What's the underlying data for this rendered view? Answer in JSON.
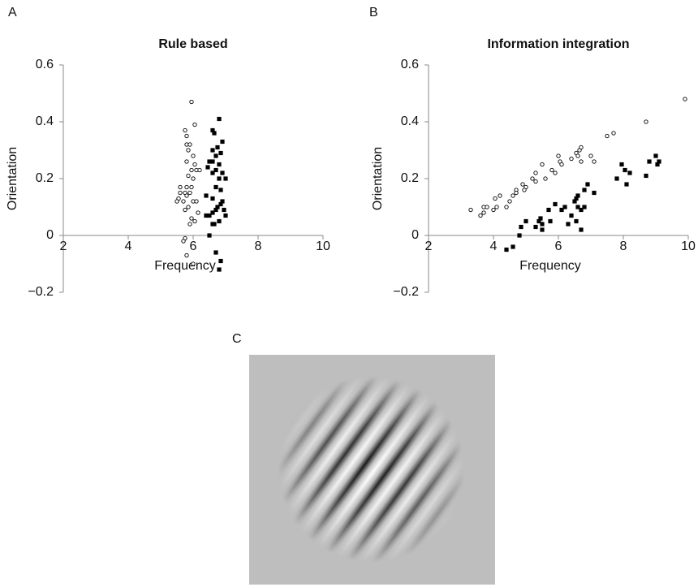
{
  "chart_data": [
    {
      "type": "scatter",
      "panel": "A",
      "title": "Rule based",
      "x_label": "Frequency",
      "y_label": "Orientation",
      "xlim": [
        2,
        10
      ],
      "ylim": [
        -0.2,
        0.6
      ],
      "xticks": [
        2,
        4,
        6,
        8,
        10
      ],
      "yticks": [
        {
          "value": -0.2,
          "label": "−0.2"
        },
        0,
        0.2,
        0.4,
        0.6
      ],
      "series": [
        {
          "marker": "open-circle",
          "color": "#000000",
          "x": [
            5.95,
            6.05,
            5.75,
            5.8,
            5.8,
            5.9,
            5.85,
            6.0,
            5.8,
            6.05,
            5.95,
            6.1,
            6.2,
            5.85,
            6.0,
            5.6,
            5.8,
            5.95,
            5.6,
            5.75,
            5.9,
            5.55,
            5.8,
            5.7,
            6.0,
            6.1,
            5.5,
            5.85,
            5.75,
            6.15,
            5.95,
            6.05,
            5.9,
            5.75,
            5.7,
            5.8,
            6.0
          ],
          "values": [
            0.47,
            0.39,
            0.37,
            0.35,
            0.32,
            0.32,
            0.3,
            0.28,
            0.26,
            0.25,
            0.23,
            0.23,
            0.23,
            0.21,
            0.2,
            0.17,
            0.17,
            0.17,
            0.15,
            0.15,
            0.15,
            0.13,
            0.14,
            0.12,
            0.12,
            0.12,
            0.12,
            0.1,
            0.09,
            0.08,
            0.06,
            0.05,
            0.04,
            -0.01,
            -0.02,
            -0.07,
            -0.1
          ]
        },
        {
          "marker": "square",
          "color": "#000000",
          "x": [
            6.8,
            6.6,
            6.65,
            6.9,
            6.75,
            6.6,
            6.85,
            6.7,
            6.5,
            6.6,
            6.8,
            6.45,
            6.7,
            6.9,
            6.6,
            6.8,
            7.0,
            6.7,
            6.85,
            6.6,
            6.4,
            6.9,
            6.75,
            6.85,
            6.7,
            6.95,
            6.6,
            7.0,
            6.4,
            6.5,
            6.8,
            6.65,
            6.6,
            6.5,
            6.7,
            6.85,
            6.8
          ],
          "values": [
            0.41,
            0.37,
            0.36,
            0.33,
            0.31,
            0.3,
            0.29,
            0.28,
            0.26,
            0.26,
            0.25,
            0.24,
            0.23,
            0.22,
            0.22,
            0.2,
            0.2,
            0.17,
            0.16,
            0.13,
            0.14,
            0.12,
            0.1,
            0.11,
            0.09,
            0.09,
            0.08,
            0.07,
            0.07,
            0.07,
            0.05,
            0.04,
            0.04,
            0.0,
            -0.06,
            -0.09,
            -0.12
          ]
        }
      ]
    },
    {
      "type": "scatter",
      "panel": "B",
      "title": "Information integration",
      "x_label": "Frequency",
      "y_label": "Orientation",
      "xlim": [
        2,
        10
      ],
      "ylim": [
        -0.2,
        0.6
      ],
      "xticks": [
        2,
        4,
        6,
        8,
        10
      ],
      "yticks": [
        {
          "value": -0.2,
          "label": "−0.2"
        },
        0,
        0.2,
        0.4,
        0.6
      ],
      "series": [
        {
          "marker": "open-circle",
          "color": "#000000",
          "x": [
            3.3,
            3.6,
            3.7,
            3.7,
            3.8,
            4.0,
            4.1,
            4.05,
            4.2,
            4.4,
            4.5,
            4.6,
            4.7,
            4.7,
            4.9,
            5.0,
            4.95,
            5.2,
            5.3,
            5.3,
            5.5,
            5.6,
            5.8,
            5.9,
            6.0,
            6.05,
            6.1,
            6.4,
            6.55,
            6.6,
            6.65,
            6.7,
            6.7,
            7.0,
            7.1,
            7.5,
            7.7,
            8.7,
            9.9
          ],
          "values": [
            0.09,
            0.07,
            0.08,
            0.1,
            0.1,
            0.09,
            0.1,
            0.13,
            0.14,
            0.1,
            0.12,
            0.14,
            0.16,
            0.15,
            0.18,
            0.17,
            0.16,
            0.2,
            0.22,
            0.19,
            0.25,
            0.2,
            0.23,
            0.22,
            0.28,
            0.26,
            0.25,
            0.27,
            0.29,
            0.28,
            0.3,
            0.31,
            0.26,
            0.28,
            0.26,
            0.35,
            0.36,
            0.4,
            0.48
          ]
        },
        {
          "marker": "square",
          "color": "#000000",
          "x": [
            4.4,
            4.6,
            4.8,
            4.85,
            5.0,
            5.3,
            5.4,
            5.45,
            5.5,
            5.5,
            5.7,
            5.75,
            5.9,
            6.1,
            6.2,
            6.3,
            6.4,
            6.5,
            6.55,
            6.55,
            6.6,
            6.6,
            6.7,
            6.7,
            6.8,
            6.8,
            6.9,
            7.1,
            7.8,
            7.95,
            8.05,
            8.1,
            8.2,
            8.7,
            8.8,
            9.0,
            9.05,
            9.1
          ],
          "values": [
            -0.05,
            -0.04,
            0.0,
            0.03,
            0.05,
            0.03,
            0.05,
            0.06,
            0.02,
            0.04,
            0.09,
            0.05,
            0.11,
            0.09,
            0.1,
            0.04,
            0.07,
            0.12,
            0.13,
            0.05,
            0.14,
            0.1,
            0.09,
            0.02,
            0.1,
            0.16,
            0.18,
            0.15,
            0.2,
            0.25,
            0.23,
            0.18,
            0.22,
            0.21,
            0.26,
            0.28,
            0.25,
            0.26
          ]
        }
      ]
    }
  ],
  "image_panel": {
    "panel": "C"
  }
}
